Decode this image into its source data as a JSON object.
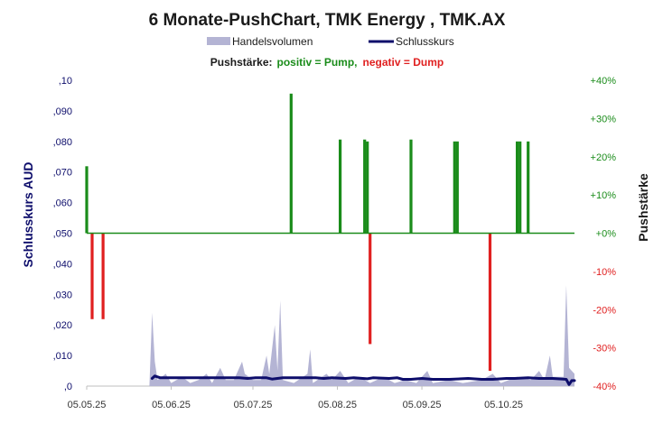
{
  "chart_data": {
    "type": "bar",
    "title": "6 Monate-PushChart,  TMK Energy , TMK.AX",
    "legend": {
      "position": "top-center",
      "items": [
        {
          "label": "Handelsvolumen",
          "color": "#b4b4d4",
          "kind": "area"
        },
        {
          "label": "Schlusskurs",
          "color": "#0d0d6b",
          "kind": "line"
        }
      ]
    },
    "subtitle": {
      "prefix": "Pushstärke:",
      "positive": "positiv = Pump,",
      "negative": "negativ = Dump",
      "prefix_color": "#1a1a1a",
      "positive_color": "#1a8c1a",
      "negative_color": "#e02020"
    },
    "ylabel_left": "Schlusskurs AUD",
    "ylabel_right": "Pushstärke",
    "left_axis": {
      "min": 0,
      "max": 0.1,
      "ticks": [
        0,
        0.01,
        0.02,
        0.03,
        0.04,
        0.05,
        0.06,
        0.07,
        0.08,
        0.09,
        0.1
      ],
      "tick_labels": [
        ",0",
        ",010",
        ",020",
        ",030",
        ",040",
        ",050",
        ",060",
        ",070",
        ",080",
        ",090",
        ",10"
      ],
      "color": "#0d0d6b"
    },
    "right_axis": {
      "min": -40,
      "max": 40,
      "ticks": [
        -40,
        -30,
        -20,
        -10,
        0,
        10,
        20,
        30,
        40
      ],
      "tick_labels": [
        "-40%",
        "-30%",
        "-20%",
        "-10%",
        "+0%",
        "+10%",
        "+20%",
        "+30%",
        "+40%"
      ],
      "positive_color": "#1a8c1a",
      "negative_color": "#e02020"
    },
    "x_axis": {
      "start": "2025-05-05",
      "end": "2025-10-31",
      "tick_dates": [
        "2025-05-05",
        "2025-06-05",
        "2025-07-05",
        "2025-08-05",
        "2025-09-05",
        "2025-10-05"
      ],
      "tick_labels": [
        "05.05.25",
        "05.06.25",
        "05.07.25",
        "05.08.25",
        "05.09.25",
        "05.10.25"
      ]
    },
    "zero_line_color": "#1a8c1a",
    "series": [
      {
        "name": "Schlusskurs",
        "type": "line",
        "axis": "left",
        "color": "#0d0d6b",
        "points": [
          [
            "2025-05-29",
            0.0025
          ],
          [
            "2025-05-30",
            0.0033
          ],
          [
            "2025-06-01",
            0.0027
          ],
          [
            "2025-06-10",
            0.0027
          ],
          [
            "2025-06-20",
            0.0027
          ],
          [
            "2025-06-30",
            0.0027
          ],
          [
            "2025-07-03",
            0.0025
          ],
          [
            "2025-07-06",
            0.0027
          ],
          [
            "2025-07-10",
            0.0027
          ],
          [
            "2025-07-12",
            0.0023
          ],
          [
            "2025-07-16",
            0.0027
          ],
          [
            "2025-07-22",
            0.0027
          ],
          [
            "2025-07-28",
            0.0027
          ],
          [
            "2025-07-31",
            0.0025
          ],
          [
            "2025-08-03",
            0.0027
          ],
          [
            "2025-08-08",
            0.0025
          ],
          [
            "2025-08-11",
            0.0027
          ],
          [
            "2025-08-16",
            0.0024
          ],
          [
            "2025-08-18",
            0.0027
          ],
          [
            "2025-08-24",
            0.0025
          ],
          [
            "2025-08-27",
            0.0027
          ],
          [
            "2025-08-29",
            0.0022
          ],
          [
            "2025-09-01",
            0.0022
          ],
          [
            "2025-09-05",
            0.0025
          ],
          [
            "2025-09-09",
            0.0022
          ],
          [
            "2025-09-15",
            0.0022
          ],
          [
            "2025-09-22",
            0.0025
          ],
          [
            "2025-09-27",
            0.0022
          ],
          [
            "2025-10-01",
            0.0022
          ],
          [
            "2025-10-06",
            0.0025
          ],
          [
            "2025-10-09",
            0.0025
          ],
          [
            "2025-10-14",
            0.0027
          ],
          [
            "2025-10-18",
            0.0025
          ],
          [
            "2025-10-23",
            0.0025
          ],
          [
            "2025-10-28",
            0.0022
          ],
          [
            "2025-10-29",
            0.0005
          ],
          [
            "2025-10-30",
            0.0018
          ],
          [
            "2025-10-31",
            0.0018
          ]
        ]
      },
      {
        "name": "Handelsvolumen",
        "type": "area",
        "axis": "left",
        "color": "#b4b4d4",
        "points": [
          [
            "2025-05-28",
            0
          ],
          [
            "2025-05-29",
            0.024
          ],
          [
            "2025-05-30",
            0.008
          ],
          [
            "2025-05-31",
            0.002
          ],
          [
            "2025-06-03",
            0.004
          ],
          [
            "2025-06-05",
            0.001
          ],
          [
            "2025-06-09",
            0.003
          ],
          [
            "2025-06-12",
            0.001
          ],
          [
            "2025-06-15",
            0.002
          ],
          [
            "2025-06-18",
            0.004
          ],
          [
            "2025-06-20",
            0.001
          ],
          [
            "2025-06-23",
            0.006
          ],
          [
            "2025-06-25",
            0.002
          ],
          [
            "2025-06-28",
            0.002
          ],
          [
            "2025-07-01",
            0.008
          ],
          [
            "2025-07-02",
            0.004
          ],
          [
            "2025-07-05",
            0.002
          ],
          [
            "2025-07-08",
            0.002
          ],
          [
            "2025-07-10",
            0.01
          ],
          [
            "2025-07-11",
            0.004
          ],
          [
            "2025-07-13",
            0.02
          ],
          [
            "2025-07-14",
            0.005
          ],
          [
            "2025-07-15",
            0.028
          ],
          [
            "2025-07-16",
            0.002
          ],
          [
            "2025-07-20",
            0.001
          ],
          [
            "2025-07-25",
            0.004
          ],
          [
            "2025-07-26",
            0.012
          ],
          [
            "2025-07-27",
            0.001
          ],
          [
            "2025-08-01",
            0.004
          ],
          [
            "2025-08-03",
            0.002
          ],
          [
            "2025-08-06",
            0.005
          ],
          [
            "2025-08-09",
            0.001
          ],
          [
            "2025-08-13",
            0.003
          ],
          [
            "2025-08-17",
            0.001
          ],
          [
            "2025-08-22",
            0.003
          ],
          [
            "2025-08-26",
            0.001
          ],
          [
            "2025-08-30",
            0.002
          ],
          [
            "2025-09-03",
            0.001
          ],
          [
            "2025-09-06",
            0.004
          ],
          [
            "2025-09-07",
            0.005
          ],
          [
            "2025-09-09",
            0.001
          ],
          [
            "2025-09-15",
            0.002
          ],
          [
            "2025-09-20",
            0.001
          ],
          [
            "2025-09-27",
            0.002
          ],
          [
            "2025-10-01",
            0.004
          ],
          [
            "2025-10-04",
            0.001
          ],
          [
            "2025-10-10",
            0.003
          ],
          [
            "2025-10-15",
            0.002
          ],
          [
            "2025-10-18",
            0.005
          ],
          [
            "2025-10-20",
            0.002
          ],
          [
            "2025-10-22",
            0.01
          ],
          [
            "2025-10-23",
            0.003
          ],
          [
            "2025-10-27",
            0.003
          ],
          [
            "2025-10-28",
            0.033
          ],
          [
            "2025-10-29",
            0.006
          ],
          [
            "2025-10-30",
            0.005
          ],
          [
            "2025-10-31",
            0.004
          ]
        ]
      },
      {
        "name": "Pushstärke",
        "type": "bar",
        "axis": "right",
        "bars": [
          [
            "2025-05-05",
            17.5
          ],
          [
            "2025-05-07",
            -22.5
          ],
          [
            "2025-05-11",
            -22.5
          ],
          [
            "2025-07-19",
            36.5
          ],
          [
            "2025-08-06",
            24.5
          ],
          [
            "2025-08-15",
            24.5
          ],
          [
            "2025-08-16",
            24.0
          ],
          [
            "2025-08-17",
            -29.0
          ],
          [
            "2025-09-01",
            24.5
          ],
          [
            "2025-09-17",
            24.0
          ],
          [
            "2025-09-18",
            24.0
          ],
          [
            "2025-09-30",
            -36.0
          ],
          [
            "2025-10-10",
            24.0
          ],
          [
            "2025-10-11",
            24.0
          ],
          [
            "2025-10-14",
            24.0
          ]
        ]
      }
    ]
  }
}
